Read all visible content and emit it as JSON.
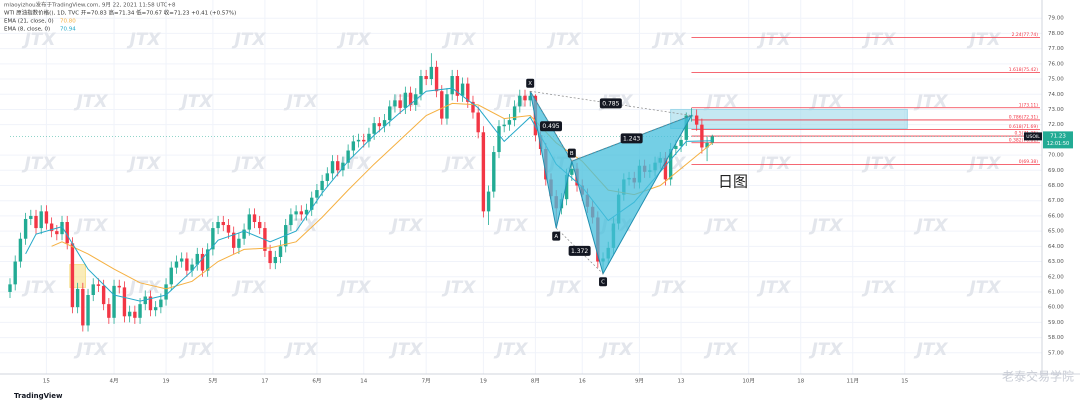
{
  "chart_data": {
    "type": "candlestick",
    "header": "mlaoyizhou发布于TradingView.com, 9月 22, 2021 11:58 UTC+8",
    "ohlc_line": "WTI 原油指数价格(), 1D, TVC  开=70.83 高=71.34 低=70.67 收=71.23 +0.41 (+0.57%)",
    "symbol": "USOIL",
    "last_price_label": "71.23",
    "countdown": "12:01:50",
    "annotation": "日图",
    "watermark": "JTX",
    "tv_logo": "TradingView",
    "corner_mark": "老泰交易学院",
    "up_color": "#22ab94",
    "down_color": "#f23645",
    "grid": true,
    "xlim": [
      0,
      198
    ],
    "ylim": [
      56,
      80
    ],
    "xticks": [
      {
        "value": 7,
        "label": "15"
      },
      {
        "value": 20,
        "label": "4月"
      },
      {
        "value": 30,
        "label": "19"
      },
      {
        "value": 39,
        "label": "5月"
      },
      {
        "value": 49,
        "label": "17"
      },
      {
        "value": 59,
        "label": "6月"
      },
      {
        "value": 68,
        "label": "14"
      },
      {
        "value": 80,
        "label": "7月"
      },
      {
        "value": 91,
        "label": "19"
      },
      {
        "value": 101,
        "label": "8月"
      },
      {
        "value": 110,
        "label": "16"
      },
      {
        "value": 121,
        "label": "9月"
      },
      {
        "value": 129,
        "label": "13"
      },
      {
        "value": 142,
        "label": "10月"
      },
      {
        "value": 152,
        "label": "18"
      },
      {
        "value": 162,
        "label": "11月"
      },
      {
        "value": 172,
        "label": "15"
      }
    ],
    "yticks": [
      {
        "value": 57,
        "label": "57.00"
      },
      {
        "value": 58,
        "label": "58.00"
      },
      {
        "value": 59,
        "label": "59.00"
      },
      {
        "value": 60,
        "label": "60.00"
      },
      {
        "value": 61,
        "label": "61.00"
      },
      {
        "value": 62,
        "label": "62.00"
      },
      {
        "value": 63,
        "label": "63.00"
      },
      {
        "value": 64,
        "label": "64.00"
      },
      {
        "value": 65,
        "label": "65.00"
      },
      {
        "value": 66,
        "label": "66.00"
      },
      {
        "value": 67,
        "label": "67.00"
      },
      {
        "value": 68,
        "label": "68.00"
      },
      {
        "value": 69,
        "label": "69.00"
      },
      {
        "value": 70,
        "label": "70.00"
      },
      {
        "value": 72,
        "label": "72.00"
      },
      {
        "value": 73,
        "label": "73.00"
      },
      {
        "value": 74,
        "label": "74.00"
      },
      {
        "value": 75,
        "label": "75.00"
      },
      {
        "value": 76,
        "label": "76.00"
      },
      {
        "value": 77,
        "label": "77.00"
      },
      {
        "value": 78,
        "label": "78.00"
      },
      {
        "value": 79,
        "label": "79.00"
      }
    ],
    "candles": [
      [
        61.0,
        61.9,
        60.6,
        61.5
      ],
      [
        61.5,
        63.4,
        61.1,
        63.0
      ],
      [
        63.0,
        64.9,
        62.6,
        64.5
      ],
      [
        64.5,
        66.2,
        64.1,
        65.8
      ],
      [
        65.8,
        66.4,
        65.4,
        66.0
      ],
      [
        66.0,
        66.4,
        64.8,
        65.2
      ],
      [
        65.2,
        66.7,
        64.8,
        66.3
      ],
      [
        66.3,
        66.7,
        65.1,
        65.5
      ],
      [
        65.5,
        65.9,
        64.6,
        65.0
      ],
      [
        65.0,
        65.4,
        64.4,
        64.8
      ],
      [
        64.8,
        66.0,
        64.4,
        65.6
      ],
      [
        65.6,
        66.0,
        63.8,
        64.2
      ],
      [
        64.2,
        64.6,
        59.6,
        60.0
      ],
      [
        60.0,
        61.6,
        59.6,
        61.2
      ],
      [
        61.2,
        61.6,
        58.4,
        58.8
      ],
      [
        58.8,
        61.2,
        58.4,
        60.8
      ],
      [
        60.8,
        61.9,
        60.4,
        61.5
      ],
      [
        61.5,
        61.9,
        61.0,
        61.4
      ],
      [
        61.4,
        61.8,
        59.8,
        60.2
      ],
      [
        60.2,
        60.6,
        58.9,
        59.3
      ],
      [
        59.3,
        61.8,
        58.9,
        61.4
      ],
      [
        61.4,
        61.8,
        60.9,
        61.3
      ],
      [
        61.3,
        61.7,
        59.0,
        59.4
      ],
      [
        59.4,
        60.1,
        59.0,
        59.7
      ],
      [
        59.7,
        60.1,
        58.9,
        59.3
      ],
      [
        59.3,
        60.6,
        58.9,
        60.2
      ],
      [
        60.2,
        61.1,
        59.8,
        60.7
      ],
      [
        60.7,
        61.1,
        59.4,
        59.8
      ],
      [
        59.8,
        60.4,
        59.4,
        60.0
      ],
      [
        60.0,
        60.9,
        59.6,
        60.5
      ],
      [
        60.5,
        61.9,
        60.1,
        61.5
      ],
      [
        61.5,
        63.0,
        61.1,
        62.6
      ],
      [
        62.6,
        63.4,
        62.2,
        63.0
      ],
      [
        63.0,
        63.6,
        62.6,
        63.2
      ],
      [
        63.2,
        63.6,
        62.0,
        62.4
      ],
      [
        62.4,
        63.2,
        62.0,
        62.8
      ],
      [
        62.8,
        63.9,
        62.4,
        63.5
      ],
      [
        63.5,
        63.9,
        62.0,
        62.4
      ],
      [
        62.4,
        64.2,
        62.0,
        63.8
      ],
      [
        63.8,
        65.6,
        63.4,
        65.2
      ],
      [
        65.2,
        66.0,
        64.8,
        65.6
      ],
      [
        65.6,
        66.0,
        65.0,
        65.4
      ],
      [
        65.4,
        65.8,
        64.5,
        64.9
      ],
      [
        64.9,
        65.3,
        63.5,
        63.9
      ],
      [
        63.9,
        64.9,
        63.5,
        64.5
      ],
      [
        64.5,
        65.5,
        64.1,
        65.1
      ],
      [
        65.1,
        66.5,
        64.7,
        66.1
      ],
      [
        66.1,
        66.5,
        65.2,
        65.6
      ],
      [
        65.6,
        66.0,
        64.8,
        65.2
      ],
      [
        65.2,
        65.6,
        63.3,
        63.7
      ],
      [
        63.7,
        64.1,
        62.5,
        62.9
      ],
      [
        62.9,
        63.7,
        62.5,
        63.3
      ],
      [
        63.3,
        64.4,
        62.9,
        64.0
      ],
      [
        64.0,
        65.8,
        63.6,
        65.4
      ],
      [
        65.4,
        66.5,
        65.0,
        66.1
      ],
      [
        66.1,
        66.7,
        65.7,
        66.3
      ],
      [
        66.3,
        66.7,
        65.7,
        66.1
      ],
      [
        66.1,
        66.8,
        65.7,
        66.4
      ],
      [
        66.4,
        67.6,
        66.0,
        67.2
      ],
      [
        67.2,
        68.1,
        66.8,
        67.7
      ],
      [
        67.7,
        68.7,
        67.3,
        68.3
      ],
      [
        68.3,
        69.2,
        67.9,
        68.8
      ],
      [
        68.8,
        70.0,
        68.4,
        69.6
      ],
      [
        69.6,
        70.0,
        68.6,
        69.0
      ],
      [
        69.0,
        69.9,
        68.6,
        69.5
      ],
      [
        69.5,
        70.7,
        69.1,
        70.3
      ],
      [
        70.3,
        71.3,
        69.9,
        70.9
      ],
      [
        70.9,
        71.4,
        70.5,
        71.0
      ],
      [
        71.0,
        71.4,
        70.5,
        70.9
      ],
      [
        70.9,
        71.8,
        70.5,
        71.4
      ],
      [
        71.4,
        72.5,
        71.0,
        72.1
      ],
      [
        72.1,
        72.5,
        71.5,
        71.9
      ],
      [
        71.9,
        72.7,
        71.5,
        72.3
      ],
      [
        72.3,
        73.6,
        71.9,
        73.2
      ],
      [
        73.2,
        74.0,
        72.8,
        73.6
      ],
      [
        73.6,
        74.0,
        72.7,
        73.1
      ],
      [
        73.1,
        74.5,
        72.7,
        74.1
      ],
      [
        74.1,
        74.5,
        72.9,
        73.3
      ],
      [
        73.3,
        74.4,
        72.9,
        74.0
      ],
      [
        74.0,
        75.6,
        73.6,
        75.2
      ],
      [
        75.2,
        75.6,
        74.6,
        75.0
      ],
      [
        75.0,
        76.7,
        74.6,
        75.8
      ],
      [
        75.8,
        76.2,
        73.8,
        74.2
      ],
      [
        74.2,
        74.6,
        72.0,
        72.4
      ],
      [
        72.4,
        74.4,
        72.0,
        74.0
      ],
      [
        74.0,
        75.6,
        73.6,
        75.2
      ],
      [
        75.2,
        75.6,
        73.5,
        73.9
      ],
      [
        73.9,
        75.1,
        73.5,
        74.7
      ],
      [
        74.7,
        75.1,
        73.1,
        73.5
      ],
      [
        73.5,
        73.9,
        72.4,
        72.8
      ],
      [
        72.8,
        73.2,
        71.1,
        71.5
      ],
      [
        71.5,
        71.9,
        65.9,
        66.3
      ],
      [
        66.3,
        68.0,
        65.4,
        67.6
      ],
      [
        67.6,
        70.6,
        67.2,
        70.2
      ],
      [
        70.2,
        72.3,
        69.8,
        71.9
      ],
      [
        71.9,
        72.4,
        71.5,
        72.0
      ],
      [
        72.0,
        72.7,
        71.6,
        72.3
      ],
      [
        72.3,
        73.6,
        71.9,
        73.2
      ],
      [
        73.2,
        74.3,
        72.8,
        73.9
      ],
      [
        73.9,
        74.3,
        73.2,
        73.6
      ],
      [
        73.6,
        74.2,
        73.2,
        73.9
      ],
      [
        73.9,
        74.0,
        70.9,
        71.3
      ],
      [
        71.3,
        71.7,
        70.0,
        70.4
      ],
      [
        70.4,
        70.8,
        68.0,
        68.4
      ],
      [
        68.4,
        68.8,
        66.9,
        67.3
      ],
      [
        67.3,
        67.7,
        65.2,
        66.5
      ],
      [
        66.5,
        67.5,
        66.1,
        67.1
      ],
      [
        67.1,
        69.1,
        66.7,
        68.7
      ],
      [
        68.7,
        69.6,
        68.3,
        69.1
      ],
      [
        69.1,
        69.5,
        67.6,
        68.0
      ],
      [
        68.0,
        68.4,
        67.0,
        67.4
      ],
      [
        67.4,
        67.8,
        66.2,
        66.6
      ],
      [
        66.6,
        67.0,
        65.5,
        65.9
      ],
      [
        65.9,
        66.3,
        62.6,
        63.0
      ],
      [
        63.0,
        63.6,
        62.2,
        63.2
      ],
      [
        63.2,
        64.3,
        62.8,
        63.9
      ],
      [
        63.9,
        65.9,
        63.5,
        65.5
      ],
      [
        65.5,
        67.8,
        65.1,
        67.4
      ],
      [
        67.4,
        68.8,
        67.0,
        68.4
      ],
      [
        68.4,
        68.9,
        68.0,
        68.5
      ],
      [
        68.5,
        68.9,
        67.8,
        68.2
      ],
      [
        68.2,
        69.7,
        67.8,
        69.3
      ],
      [
        69.3,
        69.7,
        68.5,
        68.9
      ],
      [
        68.9,
        69.4,
        68.5,
        69.0
      ],
      [
        69.0,
        69.9,
        68.6,
        69.5
      ],
      [
        69.5,
        70.2,
        69.1,
        69.8
      ],
      [
        69.8,
        70.2,
        68.0,
        68.4
      ],
      [
        68.4,
        70.8,
        68.0,
        70.4
      ],
      [
        70.4,
        71.0,
        70.0,
        70.6
      ],
      [
        70.6,
        71.4,
        70.2,
        71.0
      ],
      [
        71.0,
        72.8,
        70.6,
        72.6
      ],
      [
        72.6,
        73.1,
        72.2,
        72.6
      ],
      [
        72.6,
        73.0,
        71.6,
        72.0
      ],
      [
        72.0,
        72.4,
        70.1,
        70.5
      ],
      [
        70.5,
        71.2,
        69.6,
        70.8
      ],
      [
        70.83,
        71.34,
        70.67,
        71.23
      ]
    ],
    "series": [
      {
        "name": "EMA (21, close, 0)",
        "last_label": "70.80",
        "color": "#f5b041",
        "x": [
          8,
          10,
          15,
          20,
          25,
          30,
          35,
          40,
          45,
          50,
          55,
          60,
          65,
          70,
          75,
          80,
          85,
          90,
          95,
          100,
          105,
          110,
          115,
          120,
          125,
          130,
          135
        ],
        "values": [
          64.0,
          64.3,
          63.5,
          62.5,
          61.6,
          61.2,
          61.7,
          63.0,
          63.8,
          63.9,
          64.3,
          65.9,
          67.7,
          69.4,
          71.0,
          72.6,
          73.4,
          73.3,
          72.4,
          72.6,
          70.8,
          69.6,
          67.7,
          67.4,
          68.0,
          69.4,
          70.8
        ]
      },
      {
        "name": "EMA (8, close, 0)",
        "last_label": "70.94",
        "color": "#26a9c9",
        "x": [
          3,
          5,
          10,
          15,
          20,
          25,
          30,
          35,
          40,
          45,
          50,
          55,
          60,
          65,
          70,
          75,
          80,
          85,
          90,
          95,
          100,
          105,
          110,
          115,
          120,
          125,
          130,
          135
        ],
        "values": [
          63.5,
          64.8,
          65.3,
          62.5,
          60.8,
          60.4,
          60.8,
          62.4,
          64.4,
          65.0,
          64.3,
          65.0,
          67.5,
          69.6,
          71.3,
          72.8,
          74.2,
          74.4,
          73.1,
          70.9,
          72.5,
          69.4,
          67.9,
          65.7,
          66.9,
          68.9,
          70.9,
          70.94
        ]
      }
    ],
    "pattern": {
      "points": [
        {
          "label": "X",
          "x": 100,
          "price": 74.2
        },
        {
          "label": "A",
          "x": 105,
          "price": 65.2
        },
        {
          "label": "B",
          "x": 108,
          "price": 69.6
        },
        {
          "label": "C",
          "x": 114,
          "price": 62.2
        },
        {
          "label": "D",
          "x": 131,
          "price": 72.6
        }
      ],
      "ratios": [
        0.495,
        0.785,
        1.243,
        1.372
      ],
      "color": "#45bfdc"
    },
    "zones": [
      {
        "x": [
          127,
          172.5
        ],
        "price": [
          73.0,
          71.75
        ],
        "color": "#9fd8ea"
      },
      {
        "x": [
          11.5,
          14.5
        ],
        "price": [
          62.8,
          61.3
        ],
        "color": "#f7e08a"
      }
    ],
    "fib_start": 131,
    "fib_levels": [
      {
        "value": 77.74,
        "label": "2.24(77.74)"
      },
      {
        "value": 75.42,
        "label": "1.618(75.42)"
      },
      {
        "value": 73.11,
        "label": "1(73.11)"
      },
      {
        "value": 72.31,
        "label": "0.786(72.31)"
      },
      {
        "value": 71.69,
        "label": "0.618(71.69)"
      },
      {
        "value": 71.25,
        "label": "0.5(71.25)"
      },
      {
        "value": 70.81,
        "label": "0.382(70.81)"
      },
      {
        "value": 69.38,
        "label": "0(69.38)"
      }
    ],
    "fib_color": "#f23645"
  }
}
